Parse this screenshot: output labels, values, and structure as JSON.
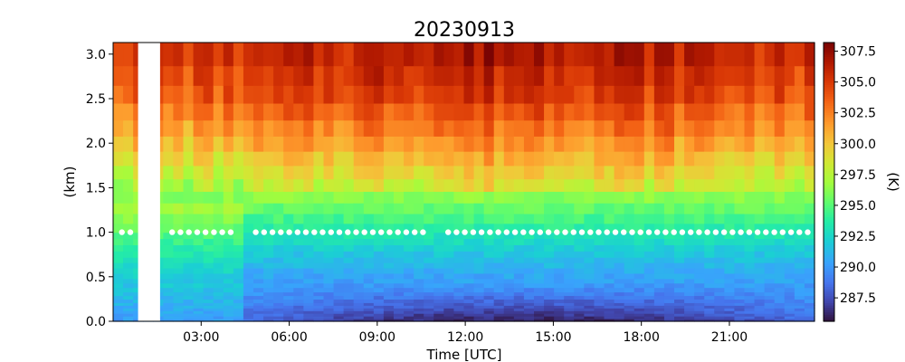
{
  "chart_data": {
    "type": "heatmap",
    "title": "20230913",
    "xlabel": "Time [UTC]",
    "ylabel": "(km)",
    "colorbar_label": "(K)",
    "x_ticks": [
      {
        "label": "03:00",
        "value": 3
      },
      {
        "label": "06:00",
        "value": 6
      },
      {
        "label": "09:00",
        "value": 9
      },
      {
        "label": "12:00",
        "value": 12
      },
      {
        "label": "15:00",
        "value": 15
      },
      {
        "label": "18:00",
        "value": 18
      },
      {
        "label": "21:00",
        "value": 21
      }
    ],
    "xlim": [
      0.0,
      23.9
    ],
    "y_ticks": [
      "0.0",
      "0.5",
      "1.0",
      "1.5",
      "2.0",
      "2.5",
      "3.0"
    ],
    "ylim": [
      0.0,
      3.13
    ],
    "colorbar_ticks": [
      "287.5",
      "290.0",
      "292.5",
      "295.0",
      "297.5",
      "300.0",
      "302.5",
      "305.0",
      "307.5"
    ],
    "clim": [
      285.6,
      308.2
    ],
    "colormap": "turbo",
    "missing_data_interval_utc": [
      0.85,
      1.6
    ],
    "dotted_line_height_km": 1.0,
    "dotted_line_color": "#ffffff",
    "temperature_profile": {
      "height_km": [
        0.0,
        0.1,
        0.3,
        0.5,
        0.8,
        1.0,
        1.5,
        2.0,
        2.5,
        3.13
      ],
      "typical_K": [
        288.5,
        289.0,
        289.8,
        290.5,
        292.0,
        293.5,
        297.0,
        300.5,
        303.5,
        305.5
      ]
    }
  }
}
